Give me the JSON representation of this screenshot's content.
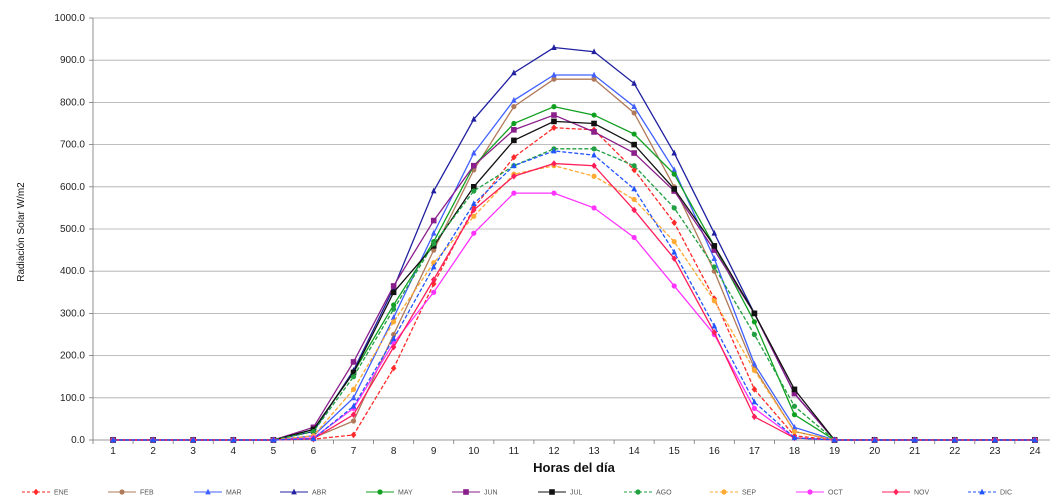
{
  "chart_data": {
    "type": "line",
    "title": "",
    "xlabel": "Horas del día",
    "ylabel": "Radiación Solar W/m2",
    "ylim": [
      0,
      1000
    ],
    "yticks": [
      "0.0",
      "100.0",
      "200.0",
      "300.0",
      "400.0",
      "500.0",
      "600.0",
      "700.0",
      "800.0",
      "900.0",
      "1000.0"
    ],
    "grid": true,
    "legend_position": "bottom",
    "x": [
      "1",
      "2",
      "3",
      "4",
      "5",
      "6",
      "7",
      "8",
      "9",
      "10",
      "11",
      "12",
      "13",
      "14",
      "15",
      "16",
      "17",
      "18",
      "19",
      "20",
      "21",
      "22",
      "23",
      "24"
    ],
    "series": [
      {
        "name": "ENE",
        "color": "#ff2a2a",
        "dashed": true,
        "marker": "diamond",
        "values": [
          0,
          0,
          0,
          0,
          0,
          2,
          12,
          170,
          370,
          550,
          670,
          740,
          735,
          640,
          515,
          335,
          120,
          10,
          0,
          0,
          0,
          0,
          0,
          0
        ]
      },
      {
        "name": "FEB",
        "color": "#b07a5a",
        "dashed": false,
        "marker": "circle",
        "values": [
          0,
          0,
          0,
          0,
          0,
          5,
          45,
          250,
          450,
          640,
          790,
          855,
          855,
          775,
          600,
          400,
          170,
          20,
          0,
          0,
          0,
          0,
          0,
          0
        ]
      },
      {
        "name": "MAR",
        "color": "#4060ff",
        "dashed": false,
        "marker": "triangle",
        "values": [
          0,
          0,
          0,
          0,
          0,
          10,
          100,
          290,
          490,
          680,
          805,
          865,
          865,
          790,
          640,
          430,
          180,
          30,
          0,
          0,
          0,
          0,
          0,
          0
        ]
      },
      {
        "name": "ABR",
        "color": "#2020a0",
        "dashed": false,
        "marker": "triangle",
        "values": [
          0,
          0,
          0,
          0,
          0,
          20,
          165,
          360,
          590,
          760,
          870,
          930,
          920,
          845,
          680,
          490,
          300,
          110,
          0,
          0,
          0,
          0,
          0,
          0
        ]
      },
      {
        "name": "MAY",
        "color": "#10a020",
        "dashed": false,
        "marker": "circle",
        "values": [
          0,
          0,
          0,
          0,
          0,
          25,
          160,
          320,
          470,
          650,
          750,
          790,
          770,
          725,
          630,
          460,
          280,
          60,
          0,
          0,
          0,
          0,
          0,
          0
        ]
      },
      {
        "name": "JUN",
        "color": "#8a1e8a",
        "dashed": false,
        "marker": "square",
        "values": [
          0,
          0,
          0,
          0,
          0,
          30,
          185,
          365,
          520,
          650,
          735,
          770,
          730,
          680,
          590,
          450,
          300,
          110,
          0,
          0,
          0,
          0,
          0,
          0
        ]
      },
      {
        "name": "JUL",
        "color": "#111111",
        "dashed": false,
        "marker": "square",
        "values": [
          0,
          0,
          0,
          0,
          0,
          25,
          160,
          350,
          460,
          600,
          710,
          755,
          750,
          700,
          595,
          460,
          300,
          120,
          0,
          0,
          0,
          0,
          0,
          0
        ]
      },
      {
        "name": "AGO",
        "color": "#20a040",
        "dashed": true,
        "marker": "circle",
        "values": [
          0,
          0,
          0,
          0,
          0,
          20,
          150,
          310,
          465,
          590,
          650,
          690,
          690,
          650,
          550,
          410,
          250,
          80,
          0,
          0,
          0,
          0,
          0,
          0
        ]
      },
      {
        "name": "SEP",
        "color": "#ffaa33",
        "dashed": true,
        "marker": "circle",
        "values": [
          0,
          0,
          0,
          0,
          0,
          10,
          120,
          280,
          420,
          530,
          630,
          650,
          625,
          570,
          470,
          330,
          165,
          20,
          0,
          0,
          0,
          0,
          0,
          0
        ]
      },
      {
        "name": "OCT",
        "color": "#ff33ff",
        "dashed": false,
        "marker": "circle",
        "values": [
          0,
          0,
          0,
          0,
          0,
          5,
          75,
          230,
          350,
          490,
          585,
          585,
          550,
          480,
          365,
          250,
          75,
          5,
          0,
          0,
          0,
          0,
          0,
          0
        ]
      },
      {
        "name": "NOV",
        "color": "#ff1f5a",
        "dashed": false,
        "marker": "diamond",
        "values": [
          0,
          0,
          0,
          0,
          0,
          3,
          60,
          220,
          380,
          545,
          625,
          655,
          650,
          545,
          430,
          255,
          55,
          5,
          0,
          0,
          0,
          0,
          0,
          0
        ]
      },
      {
        "name": "DIC",
        "color": "#2255ff",
        "dashed": true,
        "marker": "triangle",
        "values": [
          0,
          0,
          0,
          0,
          0,
          3,
          80,
          240,
          410,
          560,
          650,
          685,
          675,
          595,
          445,
          270,
          90,
          5,
          0,
          0,
          0,
          0,
          0,
          0
        ]
      }
    ]
  }
}
